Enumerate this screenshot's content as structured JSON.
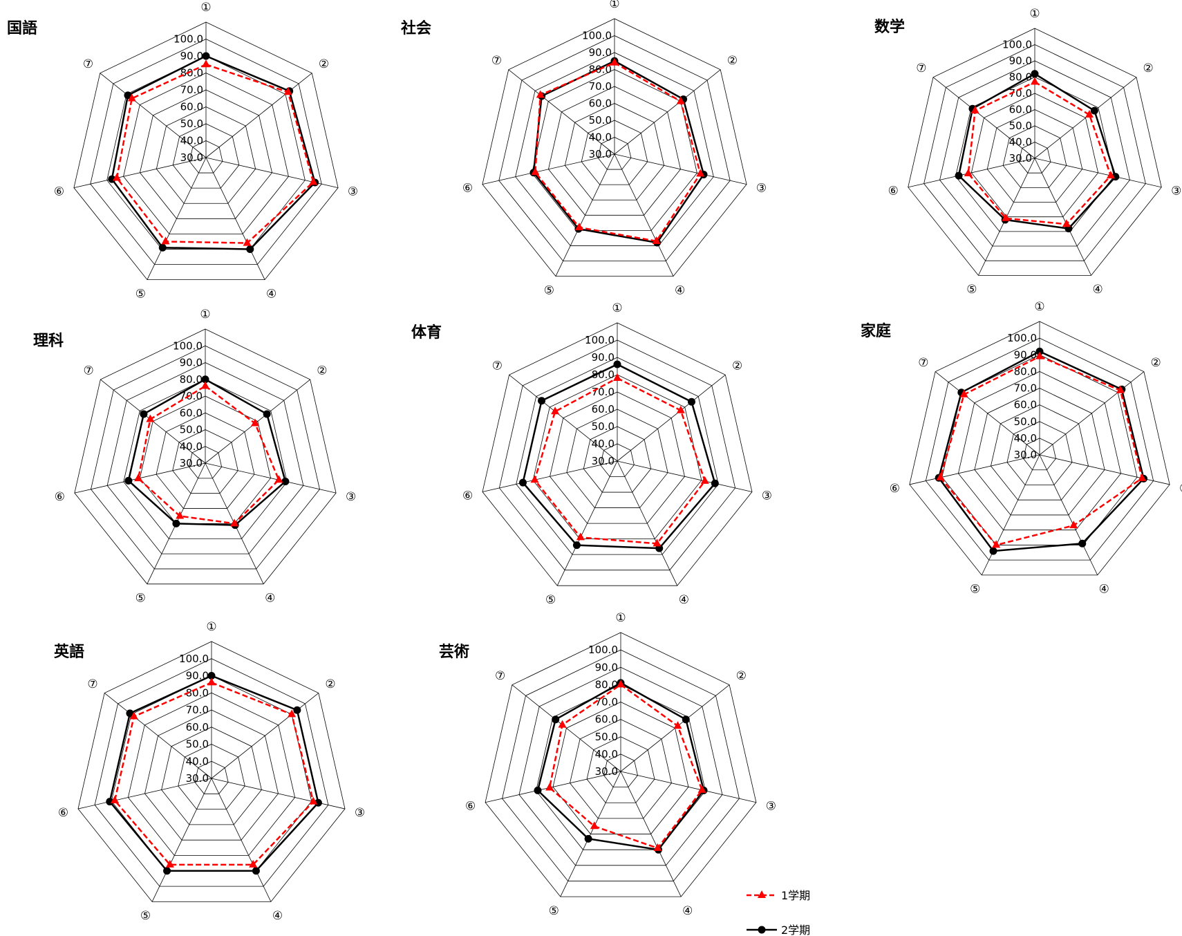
{
  "colors": {
    "series1": "#ff0000",
    "series2": "#000000",
    "grid": "#000000"
  },
  "legend": {
    "items": [
      {
        "label": "1学期",
        "color": "#ff0000",
        "marker": "triangle",
        "dash": "dashed"
      },
      {
        "label": "2学期",
        "color": "#000000",
        "marker": "circle",
        "dash": "solid"
      }
    ]
  },
  "chart_data": [
    {
      "type": "radar",
      "title": "国語",
      "axes": [
        "①",
        "②",
        "③",
        "④",
        "⑤",
        "⑥",
        "⑦"
      ],
      "ticks": [
        "30.0",
        "40.0",
        "50.0",
        "60.0",
        "70.0",
        "80.0",
        "90.0",
        "100.0"
      ],
      "range": [
        30,
        110
      ],
      "series": [
        {
          "name": "1学期",
          "values": [
            85,
            92,
            95,
            86,
            85,
            84,
            86
          ]
        },
        {
          "name": "2学期",
          "values": [
            90,
            93,
            96,
            90,
            89,
            87,
            89
          ]
        }
      ]
    },
    {
      "type": "radar",
      "title": "社会",
      "axes": [
        "①",
        "②",
        "③",
        "④",
        "⑤",
        "⑥",
        "⑦"
      ],
      "ticks": [
        "30.0",
        "40.0",
        "50.0",
        "60.0",
        "70.0",
        "80.0",
        "90.0",
        "100.0"
      ],
      "range": [
        30,
        110
      ],
      "series": [
        {
          "name": "1学期",
          "values": [
            84,
            80,
            82,
            87,
            78,
            78,
            86
          ]
        },
        {
          "name": "2学期",
          "values": [
            85,
            82,
            84,
            88,
            79,
            79,
            85
          ]
        }
      ]
    },
    {
      "type": "radar",
      "title": "数学",
      "axes": [
        "①",
        "②",
        "③",
        "④",
        "⑤",
        "⑥",
        "⑦"
      ],
      "ticks": [
        "30.0",
        "40.0",
        "50.0",
        "60.0",
        "70.0",
        "80.0",
        "90.0",
        "100.0"
      ],
      "range": [
        30,
        110
      ],
      "series": [
        {
          "name": "1学期",
          "values": [
            77,
            73,
            78,
            75,
            71,
            72,
            77
          ]
        },
        {
          "name": "2学期",
          "values": [
            82,
            77,
            81,
            78,
            72,
            78,
            79
          ]
        }
      ]
    },
    {
      "type": "radar",
      "title": "理科",
      "axes": [
        "①",
        "②",
        "③",
        "④",
        "⑤",
        "⑥",
        "⑦"
      ],
      "ticks": [
        "30.0",
        "40.0",
        "50.0",
        "60.0",
        "70.0",
        "80.0",
        "90.0",
        "100.0"
      ],
      "range": [
        30,
        110
      ],
      "series": [
        {
          "name": "1学期",
          "values": [
            76,
            68,
            75,
            70,
            65,
            71,
            72
          ]
        },
        {
          "name": "2学期",
          "values": [
            80,
            77,
            79,
            71,
            70,
            77,
            77
          ]
        }
      ]
    },
    {
      "type": "radar",
      "title": "体育",
      "axes": [
        "①",
        "②",
        "③",
        "④",
        "⑤",
        "⑥",
        "⑦"
      ],
      "ticks": [
        "30.0",
        "40.0",
        "50.0",
        "60.0",
        "70.0",
        "80.0",
        "90.0",
        "100.0"
      ],
      "range": [
        30,
        110
      ],
      "series": [
        {
          "name": "1学期",
          "values": [
            78,
            77,
            82,
            83,
            79,
            79,
            76
          ]
        },
        {
          "name": "2学期",
          "values": [
            86,
            85,
            88,
            86,
            84,
            86,
            86
          ]
        }
      ]
    },
    {
      "type": "radar",
      "title": "家庭",
      "axes": [
        "①",
        "②",
        "③",
        "④",
        "⑤",
        "⑥",
        "⑦"
      ],
      "ticks": [
        "30.0",
        "40.0",
        "50.0",
        "60.0",
        "70.0",
        "80.0",
        "90.0",
        "100.0"
      ],
      "range": [
        30,
        110
      ],
      "series": [
        {
          "name": "1学期",
          "values": [
            89,
            92,
            93,
            77,
            90,
            91,
            88
          ]
        },
        {
          "name": "2学期",
          "values": [
            92,
            93,
            94,
            89,
            94,
            92,
            90
          ]
        }
      ]
    },
    {
      "type": "radar",
      "title": "英語",
      "axes": [
        "①",
        "②",
        "③",
        "④",
        "⑤",
        "⑥",
        "⑦"
      ],
      "ticks": [
        "30.0",
        "40.0",
        "50.0",
        "60.0",
        "70.0",
        "80.0",
        "90.0",
        "100.0"
      ],
      "range": [
        30,
        110
      ],
      "series": [
        {
          "name": "1学期",
          "values": [
            86,
            90,
            91,
            86,
            86,
            88,
            88
          ]
        },
        {
          "name": "2学期",
          "values": [
            90,
            94,
            94,
            90,
            90,
            91,
            91
          ]
        }
      ]
    },
    {
      "type": "radar",
      "title": "芸術",
      "axes": [
        "①",
        "②",
        "③",
        "④",
        "⑤",
        "⑥",
        "⑦"
      ],
      "ticks": [
        "30.0",
        "40.0",
        "50.0",
        "60.0",
        "70.0",
        "80.0",
        "90.0",
        "100.0"
      ],
      "range": [
        30,
        110
      ],
      "series": [
        {
          "name": "1学期",
          "values": [
            80,
            72,
            78,
            79,
            65,
            72,
            73
          ]
        },
        {
          "name": "2学期",
          "values": [
            81,
            78,
            79,
            80,
            73,
            79,
            78
          ]
        }
      ]
    }
  ]
}
